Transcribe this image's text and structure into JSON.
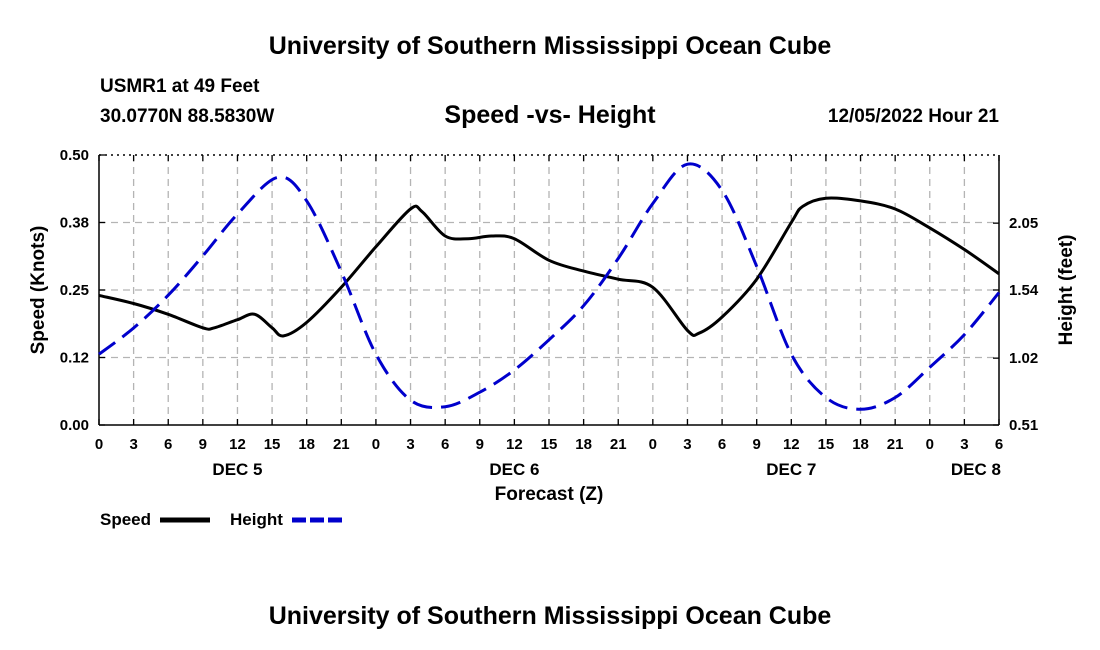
{
  "page": {
    "top_title": "University of Southern Mississippi Ocean Cube",
    "bottom_title": "University of Southern Mississippi Ocean Cube",
    "station": "USMR1 at 49 Feet",
    "coords": "30.0770N  88.5830W",
    "subtitle": "Speed -vs- Height",
    "timestamp": "12/05/2022 Hour 21"
  },
  "chart_data": {
    "type": "line",
    "title": "Speed -vs- Height",
    "xlabel": "Forecast (Z)",
    "ylabel": "Speed (Knots)",
    "y2label": "Height (feet)",
    "x_range_hours": [
      0,
      78
    ],
    "x_ticks": [
      {
        "h": 0,
        "label": "0"
      },
      {
        "h": 3,
        "label": "3"
      },
      {
        "h": 6,
        "label": "6"
      },
      {
        "h": 9,
        "label": "9"
      },
      {
        "h": 12,
        "label": "12"
      },
      {
        "h": 15,
        "label": "15"
      },
      {
        "h": 18,
        "label": "18"
      },
      {
        "h": 21,
        "label": "21"
      },
      {
        "h": 24,
        "label": "0"
      },
      {
        "h": 27,
        "label": "3"
      },
      {
        "h": 30,
        "label": "6"
      },
      {
        "h": 33,
        "label": "9"
      },
      {
        "h": 36,
        "label": "12"
      },
      {
        "h": 39,
        "label": "15"
      },
      {
        "h": 42,
        "label": "18"
      },
      {
        "h": 45,
        "label": "21"
      },
      {
        "h": 48,
        "label": "0"
      },
      {
        "h": 51,
        "label": "3"
      },
      {
        "h": 54,
        "label": "6"
      },
      {
        "h": 57,
        "label": "9"
      },
      {
        "h": 60,
        "label": "12"
      },
      {
        "h": 63,
        "label": "15"
      },
      {
        "h": 66,
        "label": "18"
      },
      {
        "h": 69,
        "label": "21"
      },
      {
        "h": 72,
        "label": "0"
      },
      {
        "h": 75,
        "label": "3"
      },
      {
        "h": 78,
        "label": "6"
      }
    ],
    "day_labels": [
      {
        "h": 12,
        "label": "DEC 5"
      },
      {
        "h": 36,
        "label": "DEC 6"
      },
      {
        "h": 60,
        "label": "DEC 7"
      },
      {
        "h": 76,
        "label": "DEC 8"
      }
    ],
    "y_left": {
      "min": 0.0,
      "max": 0.5,
      "ticks": [
        0.0,
        0.125,
        0.25,
        0.375,
        0.5
      ],
      "labels": [
        "0.00",
        "0.12",
        "0.25",
        "0.38",
        "0.50"
      ]
    },
    "y_right": {
      "min": 0.51,
      "max": 2.57,
      "ticks": [
        0.51,
        1.02,
        1.54,
        2.05
      ],
      "labels": [
        "0.51",
        "1.02",
        "1.54",
        "2.05"
      ]
    },
    "series": [
      {
        "name": "Speed",
        "axis": "left",
        "color": "#000000",
        "dash": "solid",
        "x": [
          0,
          3,
          6,
          9,
          10,
          12,
          13.5,
          15,
          16,
          18,
          21,
          24,
          27,
          28,
          30,
          32,
          34,
          36,
          39,
          42,
          45,
          48,
          51,
          52,
          54,
          57,
          60,
          61,
          63,
          66,
          69,
          72,
          75,
          78
        ],
        "values": [
          0.24,
          0.225,
          0.205,
          0.18,
          0.18,
          0.195,
          0.205,
          0.18,
          0.165,
          0.19,
          0.255,
          0.33,
          0.4,
          0.395,
          0.35,
          0.345,
          0.35,
          0.345,
          0.305,
          0.285,
          0.27,
          0.255,
          0.175,
          0.17,
          0.2,
          0.27,
          0.375,
          0.405,
          0.42,
          0.415,
          0.4,
          0.365,
          0.325,
          0.28
        ]
      },
      {
        "name": "Height",
        "axis": "right",
        "color": "#0000cc",
        "dash": "dashed",
        "x": [
          0,
          3,
          6,
          9,
          12,
          15.5,
          18,
          21,
          24,
          27,
          30,
          33,
          36,
          39,
          42,
          45,
          48,
          51,
          54,
          57,
          60,
          63,
          66,
          69,
          72,
          75,
          78
        ],
        "values": [
          1.05,
          1.25,
          1.5,
          1.8,
          2.12,
          2.4,
          2.22,
          1.68,
          1.05,
          0.7,
          0.65,
          0.76,
          0.93,
          1.16,
          1.42,
          1.78,
          2.2,
          2.5,
          2.3,
          1.72,
          1.05,
          0.72,
          0.63,
          0.72,
          0.95,
          1.2,
          1.52
        ]
      }
    ],
    "legend": [
      {
        "name": "Speed",
        "color": "#000000"
      },
      {
        "name": "Height",
        "color": "#0000cc"
      }
    ],
    "grid": true
  }
}
